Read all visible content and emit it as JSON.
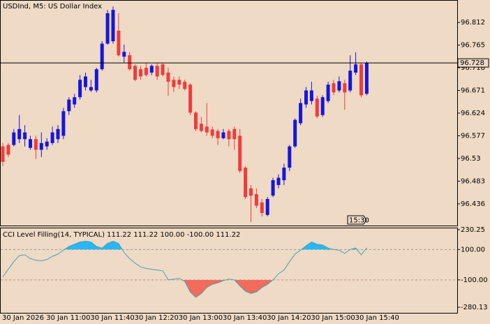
{
  "chart_data": [
    {
      "type": "candlestick",
      "title": "USDInd, M5:  US Dollar Index",
      "categories": [
        "30 Jan 2026",
        null,
        null,
        null,
        null,
        null,
        null,
        null,
        "30 Jan 11:00",
        null,
        null,
        null,
        null,
        null,
        null,
        null,
        "30 Jan 11:40",
        null,
        null,
        null,
        null,
        null,
        null,
        null,
        "30 Jan 12:20",
        null,
        null,
        null,
        null,
        null,
        null,
        null,
        "30 Jan 13:00",
        null,
        null,
        null,
        null,
        null,
        null,
        null,
        "30 Jan 13:40",
        null,
        null,
        null,
        null,
        null,
        null,
        null,
        "30 Jan 14:20",
        null,
        null,
        null,
        null,
        null,
        null,
        null,
        "30 Jan 15:00",
        null,
        null,
        null,
        null,
        null,
        null,
        null,
        "30 Jan 15:40",
        null,
        null
      ],
      "open": [
        96.555,
        96.558,
        96.558,
        96.57,
        96.57,
        96.552,
        96.57,
        96.548,
        96.555,
        96.562,
        96.57,
        96.577,
        96.628,
        96.642,
        96.657,
        96.678,
        96.671,
        96.671,
        96.715,
        96.768,
        96.773,
        96.795,
        96.741,
        96.744,
        96.722,
        96.715,
        96.718,
        96.708,
        96.722,
        96.725,
        96.708,
        96.693,
        96.693,
        96.689,
        96.683,
        96.625,
        96.602,
        96.596,
        96.59,
        96.587,
        96.572,
        96.587,
        96.591,
        96.577,
        96.511,
        96.468,
        96.456,
        96.439,
        96.413,
        96.453,
        96.475,
        96.485,
        96.511,
        96.555,
        96.603,
        96.642,
        96.649,
        96.654,
        96.62,
        96.649,
        96.686,
        96.671,
        96.686,
        96.671,
        96.708,
        96.725,
        96.664
      ],
      "high": [
        96.562,
        96.562,
        96.591,
        96.62,
        96.599,
        96.577,
        96.577,
        96.584,
        96.572,
        96.596,
        96.599,
        96.635,
        96.657,
        96.664,
        96.703,
        96.708,
        96.693,
        96.718,
        96.773,
        96.838,
        96.845,
        96.831,
        96.766,
        96.751,
        96.725,
        96.722,
        96.729,
        96.725,
        96.729,
        96.729,
        96.718,
        96.7,
        96.7,
        96.693,
        96.686,
        96.628,
        96.616,
        96.645,
        96.596,
        96.591,
        96.591,
        96.591,
        96.596,
        96.591,
        96.514,
        96.475,
        96.468,
        96.446,
        96.45,
        96.49,
        96.497,
        96.519,
        96.558,
        96.613,
        96.654,
        96.678,
        96.689,
        96.66,
        96.661,
        96.689,
        96.693,
        96.7,
        96.693,
        96.744,
        96.75,
        96.729,
        96.731
      ],
      "low": [
        96.514,
        96.533,
        96.555,
        96.562,
        96.555,
        96.548,
        96.529,
        96.533,
        96.548,
        96.558,
        96.562,
        96.57,
        96.62,
        96.635,
        96.652,
        96.671,
        96.668,
        96.667,
        96.712,
        96.766,
        96.768,
        96.741,
        96.729,
        96.712,
        96.69,
        96.693,
        96.7,
        96.703,
        96.693,
        96.7,
        96.66,
        96.668,
        96.674,
        96.671,
        96.62,
        96.587,
        96.584,
        96.577,
        96.572,
        96.558,
        96.57,
        96.555,
        96.548,
        96.5,
        96.446,
        96.398,
        96.427,
        96.41,
        96.41,
        96.45,
        96.468,
        96.475,
        96.504,
        96.552,
        96.599,
        96.635,
        96.642,
        96.613,
        96.616,
        96.645,
        96.661,
        96.667,
        96.631,
        96.667,
        96.703,
        96.657,
        96.661
      ],
      "close": [
        96.523,
        96.538,
        96.584,
        96.591,
        96.584,
        96.57,
        96.548,
        96.562,
        96.565,
        96.584,
        96.591,
        96.628,
        96.652,
        96.657,
        96.693,
        96.7,
        96.678,
        96.715,
        96.768,
        96.831,
        96.838,
        96.744,
        96.751,
        96.715,
        96.693,
        96.7,
        96.703,
        96.722,
        96.7,
        96.703,
        96.689,
        96.678,
        96.683,
        96.674,
        96.625,
        96.591,
        96.587,
        96.584,
        96.577,
        96.572,
        96.584,
        96.57,
        96.57,
        96.504,
        96.45,
        96.453,
        96.432,
        96.417,
        96.446,
        96.485,
        96.49,
        96.511,
        96.555,
        96.61,
        96.645,
        96.671,
        96.671,
        96.617,
        96.657,
        96.683,
        96.667,
        96.69,
        96.667,
        96.712,
        96.725,
        96.661,
        96.728
      ],
      "up_color": "#1616dc",
      "down_color": "#f03c3c",
      "ylim": [
        96.391,
        96.857
      ],
      "yticks": [
        96.812,
        96.765,
        96.718,
        96.671,
        96.624,
        96.577,
        96.53,
        96.483,
        96.436
      ],
      "current_price": 96.728,
      "time_marker": "15:30"
    },
    {
      "type": "line",
      "title": "CCI Level Filling(14, TYPICAL) 111.22 111.22 100.00 -100.00 111.22",
      "values": [
        -80,
        -30,
        20,
        60,
        65,
        40,
        30,
        25,
        35,
        55,
        70,
        95,
        120,
        135,
        150,
        155,
        150,
        120,
        110,
        140,
        155,
        140,
        80,
        40,
        10,
        -15,
        -25,
        -30,
        -35,
        -40,
        -100,
        -95,
        -90,
        -110,
        -180,
        -215,
        -190,
        -150,
        -130,
        -120,
        -105,
        -95,
        -100,
        -140,
        -175,
        -190,
        -180,
        -150,
        -130,
        -100,
        -60,
        -35,
        20,
        70,
        95,
        125,
        150,
        135,
        130,
        110,
        100,
        95,
        75,
        100,
        110,
        65,
        111.22
      ],
      "color": "#3fa6b4",
      "fill_above_color": "#29b6f6",
      "fill_below_color": "#f26b5b",
      "ylim": [
        -280.13,
        230.25
      ],
      "yticks": [
        230.25,
        {
          "value": 100,
          "label": "100.00"
        },
        {
          "value": -100,
          "label": "-100.00"
        },
        -280.13
      ]
    }
  ]
}
